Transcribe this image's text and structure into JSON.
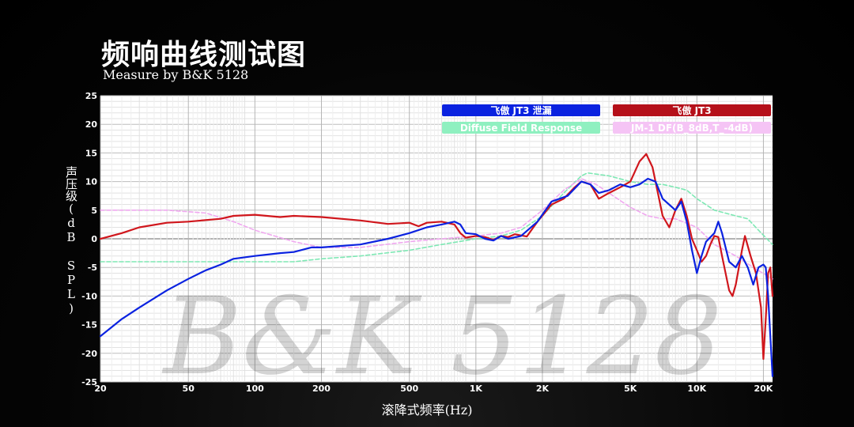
{
  "header": {
    "title": "频响曲线测试图",
    "subtitle": "Measure by B&K 5128"
  },
  "watermark": "B&K 5128",
  "chart_data": {
    "type": "line",
    "x_scale": "log",
    "xlim": [
      20,
      22000
    ],
    "ylim": [
      -25,
      25
    ],
    "xlabel": "滚降式频率(Hz)",
    "ylabel": "声压级(dB SPL)",
    "x_ticks": [
      {
        "value": 20,
        "label": "20"
      },
      {
        "value": 50,
        "label": "50"
      },
      {
        "value": 100,
        "label": "100"
      },
      {
        "value": 200,
        "label": "200"
      },
      {
        "value": 500,
        "label": "500"
      },
      {
        "value": 1000,
        "label": "1K"
      },
      {
        "value": 2000,
        "label": "2K"
      },
      {
        "value": 5000,
        "label": "5K"
      },
      {
        "value": 10000,
        "label": "10K"
      },
      {
        "value": 20000,
        "label": "20K"
      }
    ],
    "y_ticks": [
      25,
      20,
      15,
      10,
      5,
      0,
      -5,
      -10,
      -15,
      -20,
      -25
    ],
    "grid": true,
    "legend_position": "top-right",
    "series": [
      {
        "name": "Diffuse Field Response",
        "color": "#7ee8b4",
        "dashed": true,
        "points": [
          [
            20,
            -4
          ],
          [
            50,
            -4
          ],
          [
            100,
            -4
          ],
          [
            150,
            -4
          ],
          [
            200,
            -3.5
          ],
          [
            300,
            -3
          ],
          [
            500,
            -2
          ],
          [
            700,
            -1
          ],
          [
            1000,
            0
          ],
          [
            1300,
            0.5
          ],
          [
            1600,
            1.5
          ],
          [
            2000,
            4
          ],
          [
            2500,
            8
          ],
          [
            3000,
            11
          ],
          [
            3200,
            11.5
          ],
          [
            4000,
            11
          ],
          [
            5000,
            10
          ],
          [
            6000,
            9.5
          ],
          [
            7000,
            9.5
          ],
          [
            8000,
            9
          ],
          [
            9000,
            8.5
          ],
          [
            10000,
            7
          ],
          [
            12000,
            5
          ],
          [
            15000,
            4
          ],
          [
            17000,
            3.5
          ],
          [
            19000,
            1.5
          ],
          [
            22000,
            -1
          ]
        ]
      },
      {
        "name": "JM-1 DF(B_8dB,T_-4dB)",
        "color": "#f0a8f0",
        "dashed": true,
        "points": [
          [
            20,
            5
          ],
          [
            40,
            5
          ],
          [
            60,
            4.5
          ],
          [
            80,
            3
          ],
          [
            100,
            1.5
          ],
          [
            150,
            -0.5
          ],
          [
            200,
            -1.5
          ],
          [
            300,
            -1.5
          ],
          [
            500,
            -0.5
          ],
          [
            700,
            0
          ],
          [
            1000,
            0.5
          ],
          [
            1300,
            1
          ],
          [
            1600,
            2
          ],
          [
            2000,
            5
          ],
          [
            2500,
            8.5
          ],
          [
            3000,
            10.5
          ],
          [
            3500,
            9.5
          ],
          [
            4000,
            8
          ],
          [
            5000,
            5.5
          ],
          [
            6000,
            4
          ],
          [
            7000,
            3.5
          ],
          [
            8000,
            3.5
          ],
          [
            10000,
            2
          ],
          [
            12000,
            -1
          ],
          [
            15000,
            -3
          ],
          [
            18000,
            -5
          ],
          [
            22000,
            -7
          ]
        ]
      },
      {
        "name": "飞傲 JT3",
        "color": "#d0161c",
        "dashed": false,
        "points": [
          [
            20,
            0
          ],
          [
            25,
            1
          ],
          [
            30,
            2
          ],
          [
            40,
            2.8
          ],
          [
            50,
            3
          ],
          [
            70,
            3.5
          ],
          [
            80,
            4
          ],
          [
            100,
            4.2
          ],
          [
            130,
            3.8
          ],
          [
            150,
            4
          ],
          [
            200,
            3.8
          ],
          [
            300,
            3.2
          ],
          [
            400,
            2.6
          ],
          [
            500,
            2.8
          ],
          [
            550,
            2.2
          ],
          [
            600,
            2.8
          ],
          [
            700,
            3
          ],
          [
            800,
            2.5
          ],
          [
            850,
            1
          ],
          [
            900,
            0.2
          ],
          [
            1000,
            0.5
          ],
          [
            1100,
            0.3
          ],
          [
            1200,
            -0.2
          ],
          [
            1300,
            0.5
          ],
          [
            1400,
            0.3
          ],
          [
            1500,
            0.8
          ],
          [
            1700,
            0.4
          ],
          [
            1900,
            3
          ],
          [
            2200,
            6
          ],
          [
            2500,
            7
          ],
          [
            2800,
            9
          ],
          [
            3000,
            10
          ],
          [
            3300,
            9.5
          ],
          [
            3600,
            7
          ],
          [
            4000,
            8
          ],
          [
            4500,
            9
          ],
          [
            5000,
            10
          ],
          [
            5500,
            13.5
          ],
          [
            5900,
            14.8
          ],
          [
            6300,
            12.5
          ],
          [
            7000,
            4
          ],
          [
            7500,
            2
          ],
          [
            8000,
            5
          ],
          [
            8500,
            7
          ],
          [
            9000,
            4
          ],
          [
            9500,
            0
          ],
          [
            10000,
            -2
          ],
          [
            10500,
            -4
          ],
          [
            11000,
            -3
          ],
          [
            11500,
            -1
          ],
          [
            12000,
            0.5
          ],
          [
            12500,
            0.3
          ],
          [
            13000,
            -3
          ],
          [
            14000,
            -9
          ],
          [
            14500,
            -10
          ],
          [
            15000,
            -8
          ],
          [
            16000,
            -2
          ],
          [
            16500,
            0.5
          ],
          [
            17500,
            -3
          ],
          [
            18500,
            -6
          ],
          [
            19500,
            -12
          ],
          [
            20000,
            -21
          ],
          [
            20500,
            -14
          ],
          [
            21000,
            -6
          ],
          [
            21500,
            -5
          ],
          [
            22000,
            -10
          ]
        ]
      },
      {
        "name": "飞傲 JT3 泄漏",
        "color": "#0a22e0",
        "dashed": false,
        "points": [
          [
            20,
            -17
          ],
          [
            25,
            -14
          ],
          [
            30,
            -12
          ],
          [
            40,
            -9
          ],
          [
            50,
            -7
          ],
          [
            60,
            -5.5
          ],
          [
            70,
            -4.5
          ],
          [
            80,
            -3.5
          ],
          [
            100,
            -3
          ],
          [
            130,
            -2.5
          ],
          [
            150,
            -2.3
          ],
          [
            180,
            -1.5
          ],
          [
            200,
            -1.5
          ],
          [
            300,
            -1
          ],
          [
            400,
            0
          ],
          [
            500,
            1
          ],
          [
            600,
            2
          ],
          [
            700,
            2.5
          ],
          [
            800,
            3
          ],
          [
            850,
            2.5
          ],
          [
            900,
            1
          ],
          [
            1000,
            0.8
          ],
          [
            1100,
            0
          ],
          [
            1200,
            -0.3
          ],
          [
            1300,
            0.5
          ],
          [
            1400,
            0
          ],
          [
            1600,
            0.5
          ],
          [
            1900,
            3
          ],
          [
            2200,
            6.5
          ],
          [
            2600,
            7.5
          ],
          [
            3000,
            10
          ],
          [
            3300,
            9.5
          ],
          [
            3600,
            8
          ],
          [
            4000,
            8.5
          ],
          [
            4500,
            9.5
          ],
          [
            5000,
            9
          ],
          [
            5500,
            9.5
          ],
          [
            6000,
            10.5
          ],
          [
            6500,
            10
          ],
          [
            7000,
            7
          ],
          [
            8000,
            5
          ],
          [
            8500,
            6.5
          ],
          [
            9000,
            3
          ],
          [
            9500,
            -2
          ],
          [
            10000,
            -6
          ],
          [
            10500,
            -3
          ],
          [
            11000,
            -0.5
          ],
          [
            12000,
            1
          ],
          [
            12500,
            3
          ],
          [
            13000,
            1
          ],
          [
            14000,
            -4
          ],
          [
            15000,
            -5
          ],
          [
            16000,
            -3
          ],
          [
            17000,
            -5
          ],
          [
            18000,
            -8
          ],
          [
            19000,
            -5
          ],
          [
            20000,
            -4.5
          ],
          [
            20500,
            -5
          ],
          [
            21000,
            -10
          ],
          [
            22000,
            -24
          ]
        ]
      }
    ],
    "legend": [
      {
        "label": "飞傲 JT3 泄漏",
        "color": "#0a22e0"
      },
      {
        "label": "飞傲 JT3",
        "color": "#b5101a"
      },
      {
        "label": "Diffuse Field Response",
        "color": "#8ff0c0"
      },
      {
        "label": "JM-1 DF(B_8dB,T_-4dB)",
        "color": "#f5c4f5"
      }
    ]
  }
}
